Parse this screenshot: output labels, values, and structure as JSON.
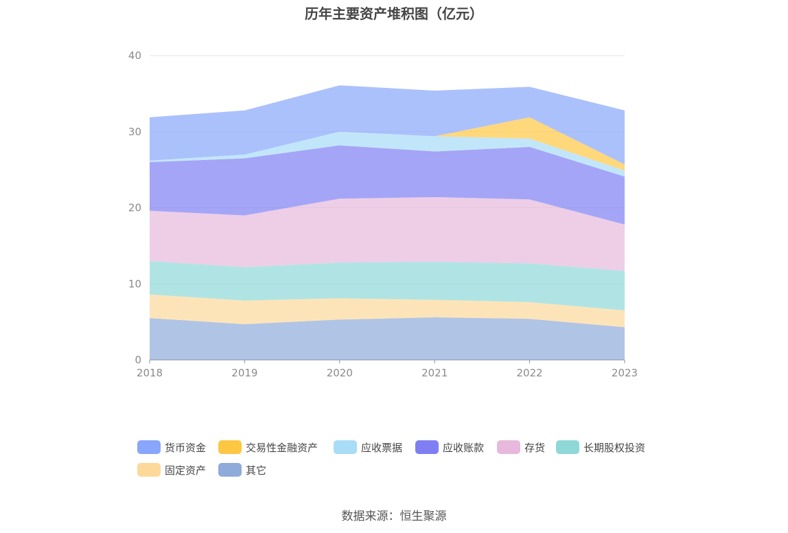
{
  "chart_data": {
    "type": "area",
    "stacked": true,
    "title": "历年主要资产堆积图（亿元）",
    "categories": [
      "2018",
      "2019",
      "2020",
      "2021",
      "2022",
      "2023"
    ],
    "ylim": [
      0,
      40
    ],
    "yticks": [
      0,
      10,
      20,
      30,
      40
    ],
    "grid": true,
    "legend_position": "bottom",
    "series": [
      {
        "name": "其它",
        "color": "#8fabdb",
        "values": [
          5.5,
          4.7,
          5.3,
          5.6,
          5.4,
          4.3
        ]
      },
      {
        "name": "固定资产",
        "color": "#fcd99a",
        "values": [
          3.1,
          3.1,
          2.8,
          2.3,
          2.2,
          2.2
        ]
      },
      {
        "name": "长期股权投资",
        "color": "#8fd8d8",
        "values": [
          4.4,
          4.4,
          4.7,
          5.0,
          5.1,
          5.2
        ]
      },
      {
        "name": "存货",
        "color": "#e7b9dc",
        "values": [
          6.6,
          6.8,
          8.4,
          8.5,
          8.4,
          6.1
        ]
      },
      {
        "name": "应收账款",
        "color": "#7f7ff3",
        "values": [
          6.4,
          7.5,
          7.0,
          6.0,
          6.9,
          6.3
        ]
      },
      {
        "name": "应收票据",
        "color": "#a8dcf7",
        "values": [
          0.2,
          0.5,
          1.8,
          2.0,
          1.1,
          0.8
        ]
      },
      {
        "name": "交易性金融资产",
        "color": "#fdc743",
        "values": [
          0.0,
          0.0,
          0.0,
          0.0,
          2.8,
          0.8
        ]
      },
      {
        "name": "货币资金",
        "color": "#88a6fb",
        "values": [
          5.7,
          5.8,
          6.1,
          6.0,
          4.0,
          7.1
        ]
      }
    ]
  },
  "legend": [
    {
      "name": "货币资金",
      "color": "#88a6fb"
    },
    {
      "name": "交易性金融资产",
      "color": "#fdc743"
    },
    {
      "name": "应收票据",
      "color": "#a8dcf7"
    },
    {
      "name": "应收账款",
      "color": "#7f7ff3"
    },
    {
      "name": "存货",
      "color": "#e7b9dc"
    },
    {
      "name": "长期股权投资",
      "color": "#8fd8d8"
    },
    {
      "name": "固定资产",
      "color": "#fcd99a"
    },
    {
      "name": "其它",
      "color": "#8fabdb"
    }
  ],
  "source": "数据来源：恒生聚源"
}
